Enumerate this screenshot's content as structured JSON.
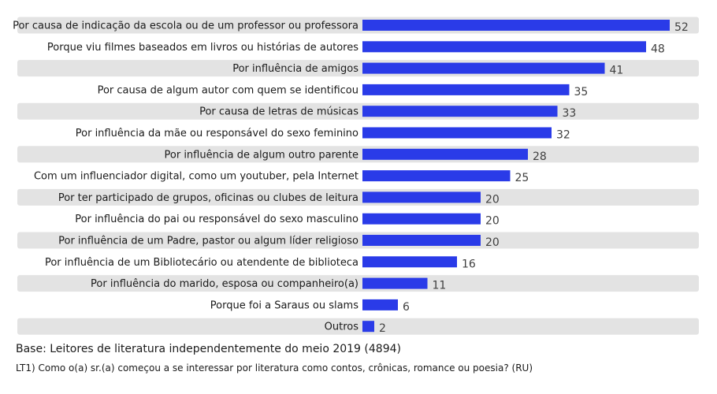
{
  "chart_data": {
    "type": "bar",
    "orientation": "horizontal",
    "categories": [
      "Por causa de indicação da escola ou de um professor ou professora",
      "Porque viu filmes baseados em livros ou histórias de autores",
      "Por influência de amigos",
      "Por causa de algum autor com quem se identificou",
      "Por causa de letras de músicas",
      "Por influência da mãe ou responsável do sexo feminino",
      "Por influência de algum outro parente",
      "Com um influenciador digital, como um youtuber, pela Internet",
      "Por ter participado de grupos, oficinas ou clubes de leitura",
      "Por influência do pai ou responsável do sexo masculino",
      "Por influência de um Padre, pastor ou algum líder religioso",
      "Por influência de um Bibliotecário ou atendente de biblioteca",
      "Por influência do marido, esposa ou companheiro(a)",
      "Porque foi a Saraus ou slams",
      "Outros"
    ],
    "values": [
      52,
      48,
      41,
      35,
      33,
      32,
      28,
      25,
      20,
      20,
      20,
      16,
      11,
      6,
      2
    ],
    "xlim": [
      0,
      60
    ],
    "grid": false,
    "legend": "none",
    "colors": {
      "bar": "#2a3be8",
      "band": "#e3e3e3"
    }
  },
  "footnotes": {
    "base": "Base: Leitores de literatura independentemente do meio 2019 (4894)",
    "question": "LT1) Como o(a) sr.(a) começou a se interessar por literatura como contos, crônicas, romance ou poesia? (RU)"
  }
}
